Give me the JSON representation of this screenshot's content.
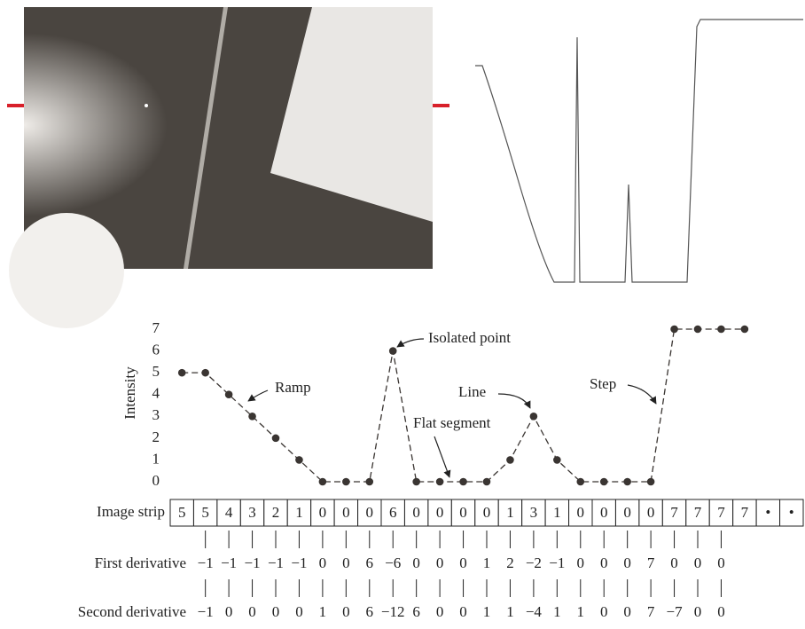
{
  "chart_data": {
    "type": "line",
    "y_label": "Intensity",
    "categories": [
      null,
      null,
      null,
      null,
      null,
      null,
      null,
      null,
      null,
      null,
      null,
      null,
      null,
      null,
      null,
      null,
      null,
      null,
      null,
      null,
      null,
      null,
      null,
      null,
      null
    ],
    "values": [
      5,
      5,
      4,
      3,
      2,
      1,
      0,
      0,
      0,
      6,
      0,
      0,
      0,
      0,
      1,
      3,
      1,
      0,
      0,
      0,
      0,
      7,
      7,
      7,
      7
    ],
    "color": "#3a3532",
    "ylim": [
      0,
      7
    ],
    "yticks": [
      0,
      1,
      2,
      3,
      4,
      5,
      6,
      7
    ],
    "annotations": [
      "Ramp",
      "Isolated point",
      "Line",
      "Flat segment",
      "Step"
    ]
  },
  "image_strip": {
    "label": "Image strip",
    "continuation": [
      "•",
      "•"
    ]
  },
  "first_derivative": {
    "label": "First derivative",
    "values": [
      "−1",
      "−1",
      "−1",
      "−1",
      "−1",
      "0",
      "0",
      "6",
      "−6",
      "0",
      "0",
      "0",
      "1",
      "2",
      "−2",
      "−1",
      "0",
      "0",
      "0",
      "7",
      "0",
      "0",
      "0"
    ]
  },
  "second_derivative": {
    "label": "Second derivative",
    "values": [
      "−1",
      "0",
      "0",
      "0",
      "0",
      "1",
      "0",
      "6",
      "−12",
      "6",
      "0",
      "0",
      "1",
      "1",
      "−4",
      "1",
      "1",
      "0",
      "0",
      "7",
      "−7",
      "0",
      "0"
    ]
  }
}
